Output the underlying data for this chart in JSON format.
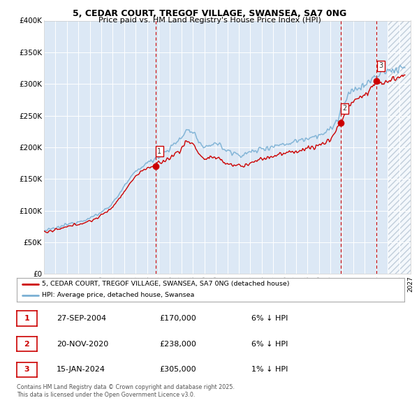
{
  "title_line1": "5, CEDAR COURT, TREGOF VILLAGE, SWANSEA, SA7 0NG",
  "title_line2": "Price paid vs. HM Land Registry's House Price Index (HPI)",
  "background_color": "#ffffff",
  "plot_bg_color": "#dce8f5",
  "sale_dates_num": [
    2004.74,
    2020.89,
    2024.04
  ],
  "sale_prices": [
    170000,
    238000,
    305000
  ],
  "sale_labels": [
    "1",
    "2",
    "3"
  ],
  "legend_line1": "5, CEDAR COURT, TREGOF VILLAGE, SWANSEA, SA7 0NG (detached house)",
  "legend_line2": "HPI: Average price, detached house, Swansea",
  "table_data": [
    [
      "1",
      "27-SEP-2004",
      "£170,000",
      "6% ↓ HPI"
    ],
    [
      "2",
      "20-NOV-2020",
      "£238,000",
      "6% ↓ HPI"
    ],
    [
      "3",
      "15-JAN-2024",
      "£305,000",
      "1% ↓ HPI"
    ]
  ],
  "footer": "Contains HM Land Registry data © Crown copyright and database right 2025.\nThis data is licensed under the Open Government Licence v3.0.",
  "xmin": 1995.0,
  "xmax": 2027.0,
  "ymin": 0,
  "ymax": 400000,
  "yticks": [
    0,
    50000,
    100000,
    150000,
    200000,
    250000,
    300000,
    350000,
    400000
  ],
  "ytick_labels": [
    "£0",
    "£50K",
    "£100K",
    "£150K",
    "£200K",
    "£250K",
    "£300K",
    "£350K",
    "£400K"
  ],
  "red_line_color": "#cc0000",
  "blue_line_color": "#7ab0d4",
  "dashed_line_color": "#cc0000",
  "hatch_start": 2025.0,
  "marker_size": 6
}
